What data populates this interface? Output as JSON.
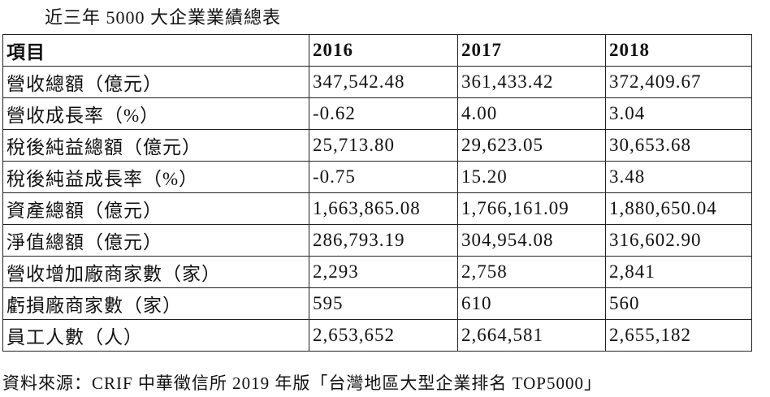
{
  "title": "近三年 5000 大企業業績總表",
  "table": {
    "header": [
      "項目",
      "2016",
      "2017",
      "2018"
    ],
    "rows": [
      [
        "營收總額（億元）",
        "347,542.48",
        "361,433.42",
        "372,409.67"
      ],
      [
        "營收成長率（%）",
        "-0.62",
        "4.00",
        "3.04"
      ],
      [
        "稅後純益總額（億元）",
        "25,713.80",
        "29,623.05",
        "30,653.68"
      ],
      [
        "稅後純益成長率（%）",
        "-0.75",
        "15.20",
        "3.48"
      ],
      [
        "資產總額（億元）",
        "1,663,865.08",
        "1,766,161.09",
        "1,880,650.04"
      ],
      [
        "淨值總額（億元）",
        "286,793.19",
        "304,954.08",
        "316,602.90"
      ],
      [
        "營收增加廠商家數（家）",
        "2,293",
        "2,758",
        "2,841"
      ],
      [
        "虧損廠商家數（家）",
        "595",
        "610",
        "560"
      ],
      [
        "員工人數（人）",
        "2,653,652",
        "2,664,581",
        "2,655,182"
      ]
    ]
  },
  "source": "資料來源：CRIF 中華徵信所 2019 年版「台灣地區大型企業排名 TOP5000」"
}
